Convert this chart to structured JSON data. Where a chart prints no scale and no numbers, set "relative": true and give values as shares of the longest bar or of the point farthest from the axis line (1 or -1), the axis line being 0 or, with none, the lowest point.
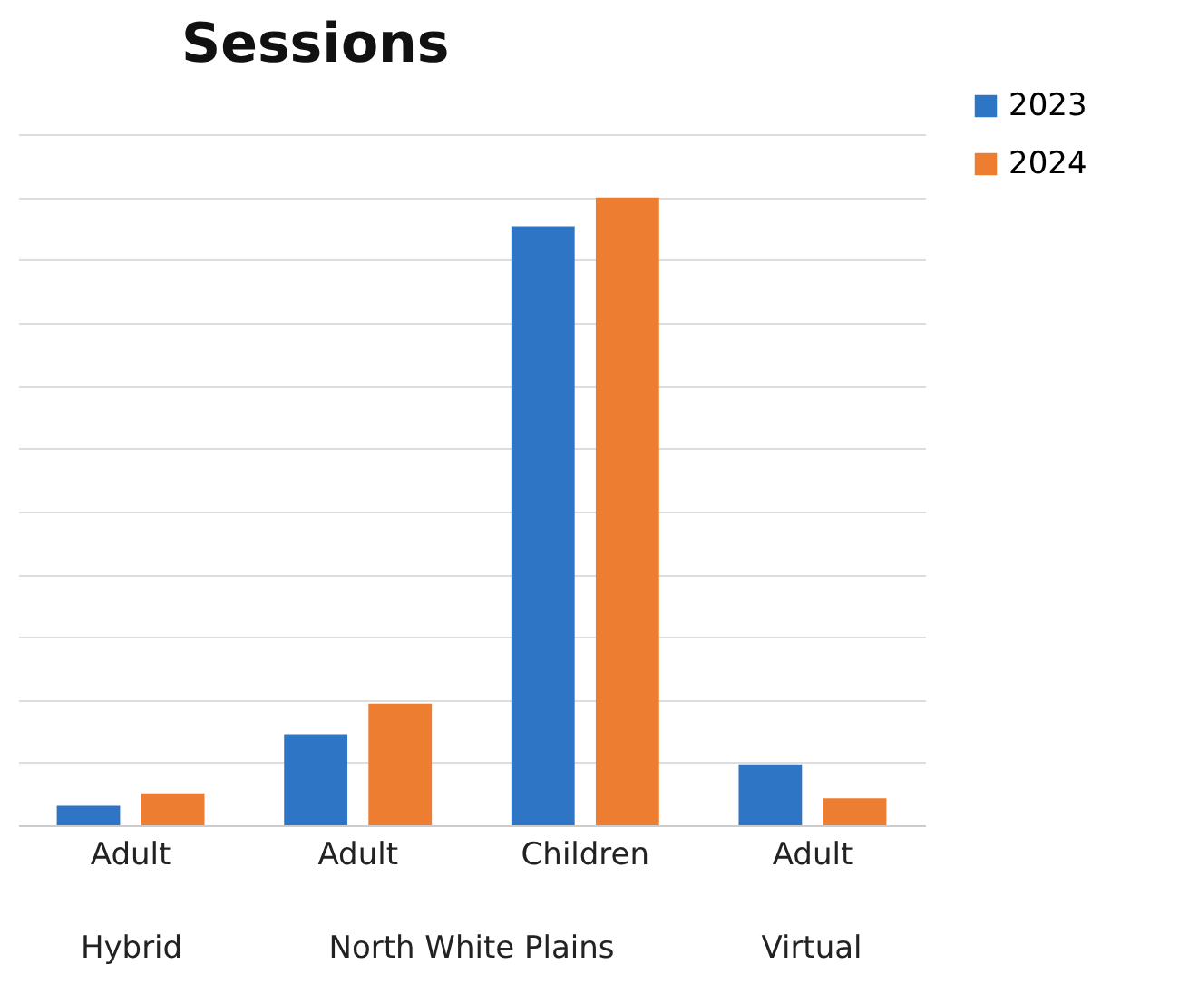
{
  "chart_data": {
    "type": "bar",
    "title": "Sessions",
    "relative": true,
    "categories": [
      "Adult",
      "Adult",
      "Children",
      "Adult"
    ],
    "series": [
      {
        "name": "2023",
        "color": "#2e75c6",
        "values": [
          0.031,
          0.145,
          0.954,
          0.097
        ]
      },
      {
        "name": "2024",
        "color": "#ed7d31",
        "values": [
          0.051,
          0.194,
          1,
          0.043
        ]
      }
    ],
    "annotations": [
      "Hybrid",
      "North White Plains",
      "Virtual"
    ],
    "grid": "y",
    "legend": "right"
  }
}
